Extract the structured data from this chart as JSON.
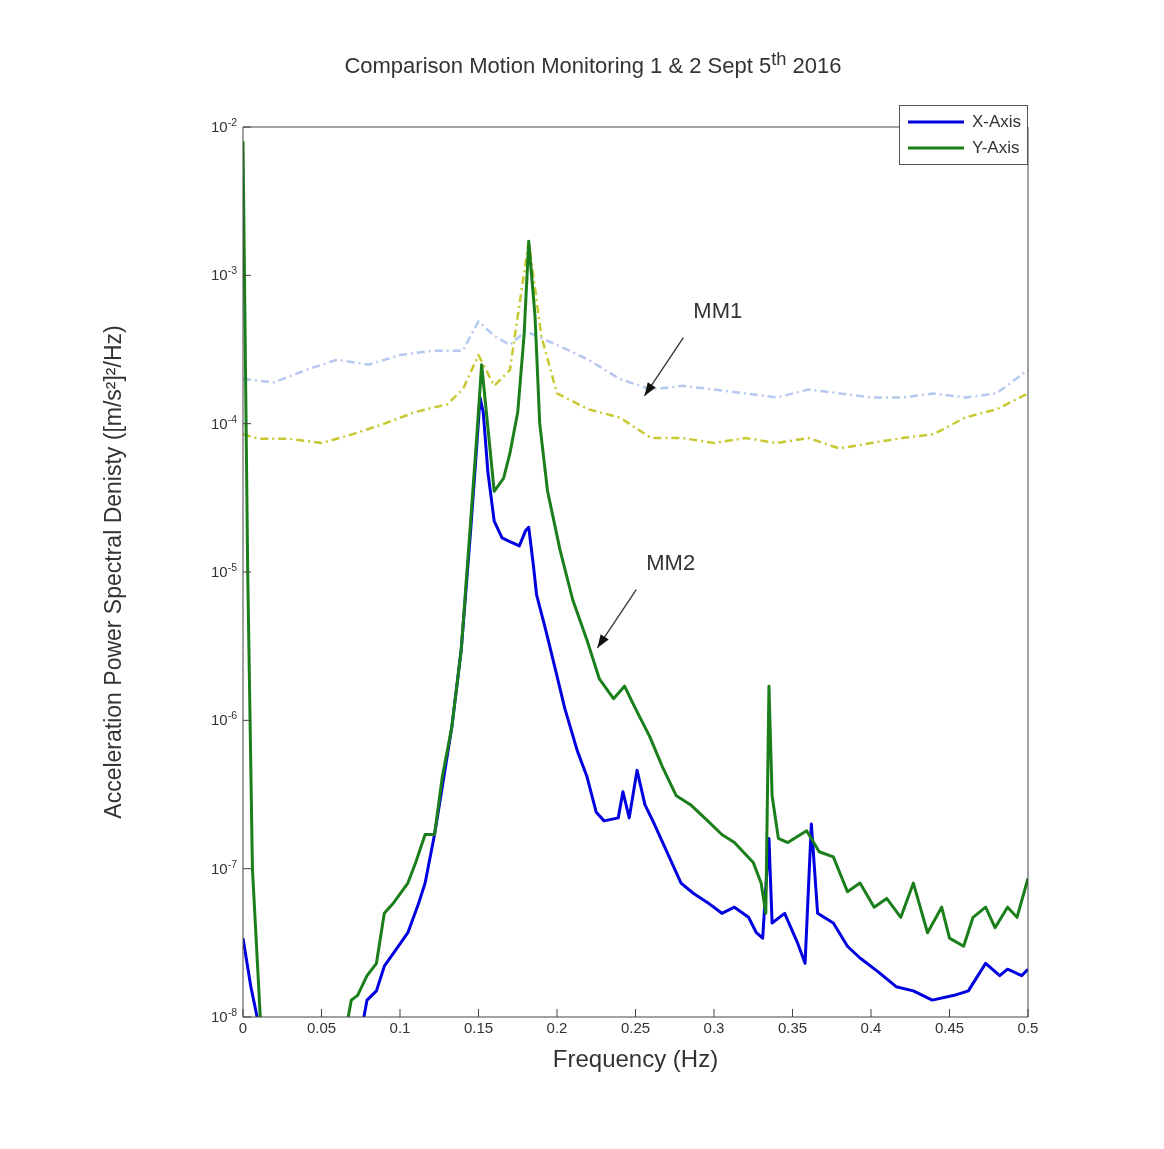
{
  "chart_data": {
    "type": "line",
    "title": "Comparison Motion Monitoring 1 & 2 Sept 5$^{th}$ 2016",
    "xlabel": "Frequency (Hz)",
    "ylabel": "Acceleration Power Spectral Denisty ([m/s²]²/Hz)",
    "log": "y",
    "xlim": [
      0,
      0.5
    ],
    "ylim": [
      1e-08,
      0.01
    ],
    "xticks": [
      0,
      0.05,
      0.1,
      0.15,
      0.2,
      0.25,
      0.3,
      0.35,
      0.4,
      0.45,
      0.5
    ],
    "yticks": [
      {
        "value": 1e-08,
        "label": "10$^{-8}$"
      },
      {
        "value": 1e-07,
        "label": "10$^{-7}$"
      },
      {
        "value": 1e-06,
        "label": "10$^{-6}$"
      },
      {
        "value": 1e-05,
        "label": "10$^{-5}$"
      },
      {
        "value": 0.0001,
        "label": "10$^{-4}$"
      },
      {
        "value": 0.001,
        "label": "10$^{-3}$"
      },
      {
        "value": 0.01,
        "label": "10$^{-2}$"
      }
    ],
    "grid": false,
    "legend": "top right",
    "marker": "none",
    "annotations": [
      {
        "text": "MM1",
        "x": 0.255,
        "y": 0.00015
      },
      {
        "text": "MM2",
        "x": 0.225,
        "y": 3e-06
      }
    ],
    "series": [
      {
        "color": "#b4c8f0",
        "line_style": "dashed",
        "x": [
          0,
          0.02,
          0.04,
          0.06,
          0.08,
          0.1,
          0.12,
          0.14,
          0.15,
          0.16,
          0.17,
          0.18,
          0.2,
          0.22,
          0.24,
          0.26,
          0.28,
          0.3,
          0.32,
          0.34,
          0.36,
          0.38,
          0.4,
          0.42,
          0.44,
          0.46,
          0.48,
          0.5
        ],
        "values": [
          0.0002,
          0.00019,
          0.00023,
          0.00027,
          0.00025,
          0.00029,
          0.00031,
          0.00031,
          0.00049,
          0.00039,
          0.00034,
          0.00042,
          0.00034,
          0.00027,
          0.0002,
          0.00017,
          0.00018,
          0.00017,
          0.00016,
          0.00015,
          0.00017,
          0.00016,
          0.00015,
          0.00015,
          0.00016,
          0.00015,
          0.00016,
          0.00023
        ]
      },
      {
        "color": "#c8c832",
        "line_style": "dashed",
        "x": [
          0,
          0.01,
          0.03,
          0.05,
          0.07,
          0.09,
          0.11,
          0.13,
          0.14,
          0.15,
          0.16,
          0.17,
          0.175,
          0.182,
          0.19,
          0.2,
          0.22,
          0.24,
          0.26,
          0.28,
          0.3,
          0.32,
          0.34,
          0.36,
          0.38,
          0.4,
          0.42,
          0.44,
          0.46,
          0.48,
          0.5
        ],
        "values": [
          8.5e-05,
          7.9e-05,
          7.9e-05,
          7.4e-05,
          8.5e-05,
          0.0001,
          0.00012,
          0.000135,
          0.00017,
          0.00029,
          0.00018,
          0.00023,
          0.00053,
          0.0017,
          0.00039,
          0.00016,
          0.000125,
          0.00011,
          8e-05,
          8e-05,
          7.4e-05,
          8e-05,
          7.4e-05,
          8e-05,
          6.8e-05,
          7.4e-05,
          8e-05,
          8.5e-05,
          0.00011,
          0.000125,
          0.00016
        ]
      },
      {
        "name": "X-Axis",
        "color": "#0000e0",
        "line_style": "solid",
        "x": [
          0,
          0.005,
          0.009,
          0.04,
          0.077,
          0.079,
          0.085,
          0.09,
          0.099,
          0.105,
          0.112,
          0.116,
          0.122,
          0.127,
          0.133,
          0.139,
          0.145,
          0.149,
          0.151,
          0.153,
          0.156,
          0.16,
          0.165,
          0.17,
          0.176,
          0.18,
          0.182,
          0.185,
          0.187,
          0.193,
          0.199,
          0.205,
          0.213,
          0.219,
          0.225,
          0.23,
          0.239,
          0.242,
          0.246,
          0.251,
          0.256,
          0.262,
          0.27,
          0.279,
          0.287,
          0.296,
          0.305,
          0.313,
          0.322,
          0.327,
          0.331,
          0.335,
          0.337,
          0.345,
          0.353,
          0.358,
          0.362,
          0.366,
          0.376,
          0.385,
          0.393,
          0.405,
          0.416,
          0.427,
          0.439,
          0.453,
          0.462,
          0.473,
          0.482,
          0.487,
          0.496,
          0.5
        ],
        "values": [
          3.4e-08,
          1.6e-08,
          1e-08,
          null,
          1e-08,
          1.3e-08,
          1.5e-08,
          2.2e-08,
          3e-08,
          3.7e-08,
          5.9e-08,
          8e-08,
          1.7e-07,
          3.6e-07,
          9e-07,
          3e-06,
          1.9e-05,
          7.4e-05,
          0.00015,
          0.00012,
          4.7e-05,
          2.2e-05,
          1.7e-05,
          1.6e-05,
          1.5e-05,
          1.9e-05,
          2e-05,
          1.1e-05,
          7e-06,
          4e-06,
          2.2e-06,
          1.2e-06,
          6.2e-07,
          4.2e-07,
          2.4e-07,
          2.1e-07,
          2.2e-07,
          3.3e-07,
          2.2e-07,
          4.6e-07,
          2.7e-07,
          2e-07,
          1.3e-07,
          8e-08,
          6.8e-08,
          5.9e-08,
          5e-08,
          5.5e-08,
          4.7e-08,
          3.7e-08,
          3.4e-08,
          1.6e-07,
          4.3e-08,
          5e-08,
          3.2e-08,
          2.3e-08,
          2e-07,
          5e-08,
          4.3e-08,
          3e-08,
          2.5e-08,
          2e-08,
          1.6e-08,
          1.5e-08,
          1.3e-08,
          1.4e-08,
          1.5e-08,
          2.3e-08,
          1.9e-08,
          2.1e-08,
          1.9e-08,
          2.1e-08
        ]
      },
      {
        "name": "Y-Axis",
        "color": "#1a7f1a",
        "line_style": "solid",
        "x": [
          0,
          0.003,
          0.006,
          0.011,
          0.04,
          0.067,
          0.069,
          0.073,
          0.079,
          0.085,
          0.09,
          0.096,
          0.105,
          0.11,
          0.116,
          0.122,
          0.127,
          0.133,
          0.139,
          0.145,
          0.149,
          0.152,
          0.155,
          0.16,
          0.166,
          0.17,
          0.175,
          0.179,
          0.182,
          0.186,
          0.189,
          0.194,
          0.202,
          0.21,
          0.219,
          0.227,
          0.236,
          0.243,
          0.25,
          0.259,
          0.267,
          0.276,
          0.285,
          0.296,
          0.305,
          0.313,
          0.325,
          0.33,
          0.333,
          0.335,
          0.337,
          0.341,
          0.347,
          0.359,
          0.367,
          0.376,
          0.385,
          0.393,
          0.402,
          0.41,
          0.419,
          0.427,
          0.436,
          0.445,
          0.45,
          0.459,
          0.465,
          0.473,
          0.479,
          0.487,
          0.493,
          0.5
        ],
        "values": [
          0.008,
          1e-05,
          1e-07,
          1e-08,
          null,
          1e-08,
          1.3e-08,
          1.4e-08,
          1.9e-08,
          2.3e-08,
          5e-08,
          5.9e-08,
          8e-08,
          1.1e-07,
          1.7e-07,
          1.7e-07,
          4.2e-07,
          9e-07,
          3e-06,
          2.2e-05,
          8.5e-05,
          0.00025,
          0.00012,
          3.5e-05,
          4.3e-05,
          6.3e-05,
          0.00012,
          0.00039,
          0.0017,
          0.00053,
          0.0001,
          3.5e-05,
          1.4e-05,
          6.5e-06,
          3.5e-06,
          1.9e-06,
          1.4e-06,
          1.7e-06,
          1.2e-06,
          7.8e-07,
          4.9e-07,
          3.1e-07,
          2.7e-07,
          2.1e-07,
          1.7e-07,
          1.5e-07,
          1.1e-07,
          8e-08,
          5e-08,
          1.7e-06,
          3.1e-07,
          1.6e-07,
          1.5e-07,
          1.8e-07,
          1.3e-07,
          1.2e-07,
          7e-08,
          8e-08,
          5.5e-08,
          6.3e-08,
          4.7e-08,
          8e-08,
          3.7e-08,
          5.5e-08,
          3.4e-08,
          3e-08,
          4.7e-08,
          5.5e-08,
          4e-08,
          5.5e-08,
          4.7e-08,
          8.6e-08
        ]
      }
    ]
  }
}
